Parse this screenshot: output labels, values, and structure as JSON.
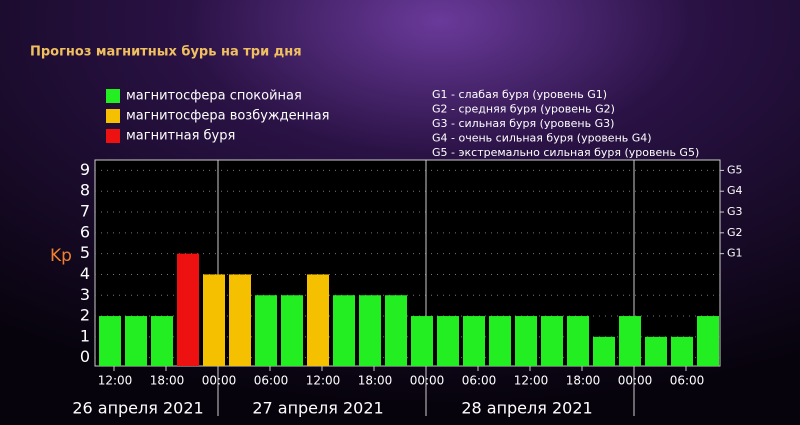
{
  "chart_data": {
    "type": "bar",
    "title": "Прогноз магнитных бурь на три дня",
    "y_label": "Kp",
    "legend": [
      {
        "name": "магнитосфера спокойная",
        "color": "#22ee22"
      },
      {
        "name": "магнитосфера возбужденная",
        "color": "#f5c000"
      },
      {
        "name": "магнитная буря",
        "color": "#ee1111"
      }
    ],
    "storm_levels": [
      "G1 - слабая буря (уровень G1)",
      "G2 - средняя буря (уровень G2)",
      "G3 - сильная буря (уровень G3)",
      "G4 - очень сильная буря (уровень G4)",
      "G5 - экстремально сильная буря (уровень G5)"
    ],
    "categories": [
      "12:00",
      null,
      "18:00",
      null,
      "00:00",
      null,
      "06:00",
      null,
      "12:00",
      null,
      "18:00",
      null,
      "00:00",
      null,
      "06:00",
      null,
      "12:00",
      null,
      "18:00",
      null,
      "00:00",
      null,
      "06:00",
      null
    ],
    "values": [
      2,
      2,
      2,
      5,
      4,
      4,
      3,
      3,
      4,
      3,
      3,
      3,
      2,
      2,
      2,
      2,
      2,
      2,
      2,
      1,
      2,
      1,
      1,
      2
    ],
    "colors": [
      "#22ee22",
      "#22ee22",
      "#22ee22",
      "#ee1111",
      "#f5c000",
      "#f5c000",
      "#22ee22",
      "#22ee22",
      "#f5c000",
      "#22ee22",
      "#22ee22",
      "#22ee22",
      "#22ee22",
      "#22ee22",
      "#22ee22",
      "#22ee22",
      "#22ee22",
      "#22ee22",
      "#22ee22",
      "#22ee22",
      "#22ee22",
      "#22ee22",
      "#22ee22",
      "#22ee22"
    ],
    "days": [
      "26 апреля 2021",
      "27 апреля 2021",
      "28 апреля 2021"
    ],
    "ylim": [
      -0.4,
      9.5
    ],
    "yticks": [
      0,
      1,
      2,
      3,
      4,
      5,
      6,
      7,
      8,
      9
    ],
    "y2lim": [
      -0.4,
      9.5
    ],
    "y2ticks": [
      {
        "value": 5,
        "label": "G1"
      },
      {
        "value": 6,
        "label": "G2"
      },
      {
        "value": 7,
        "label": "G3"
      },
      {
        "value": 8,
        "label": "G4"
      },
      {
        "value": 9,
        "label": "G5"
      }
    ],
    "grid": true
  }
}
